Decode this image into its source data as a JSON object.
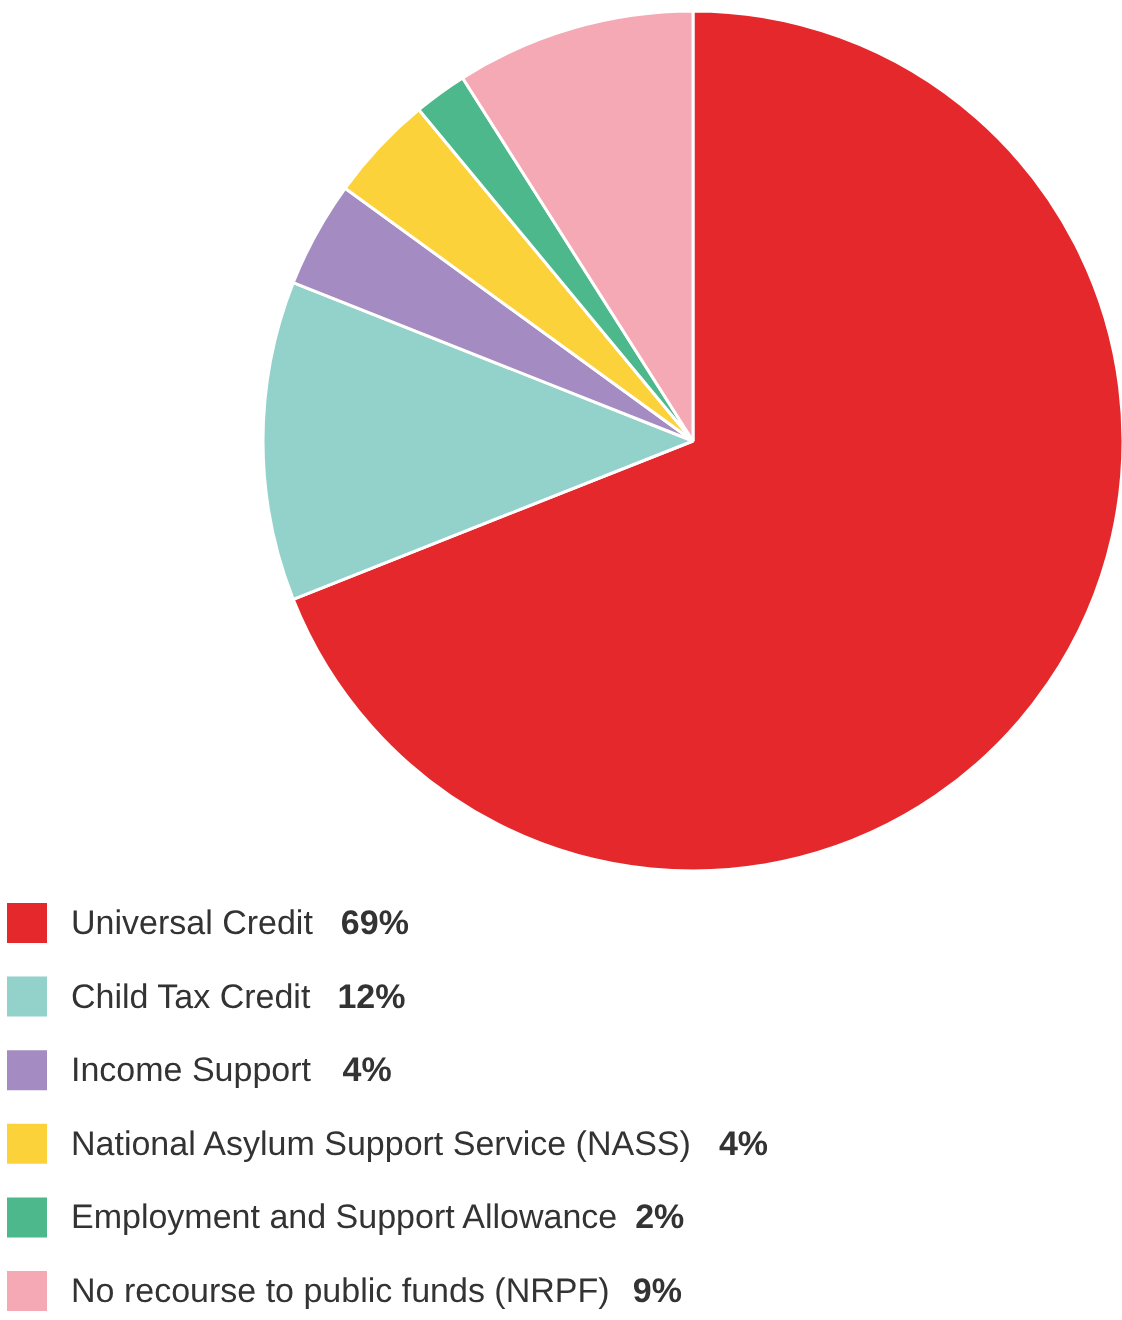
{
  "chart_data": {
    "type": "pie",
    "categories": [
      "Universal Credit",
      "Child Tax Credit",
      "Income Support",
      "National Asylum Support Service (NASS)",
      "Employment and Support Allowance",
      "No recourse to public funds (NRPF)"
    ],
    "values": [
      69,
      12,
      4,
      4,
      2,
      9
    ],
    "value_labels": [
      "69%",
      "12%",
      "4%",
      "4%",
      "2%",
      "9%"
    ],
    "colors": [
      "#e5282b",
      "#93d1cb",
      "#a48bc2",
      "#fcd23a",
      "#4cb88c",
      "#f4a9b5"
    ],
    "legend": "bottom"
  }
}
